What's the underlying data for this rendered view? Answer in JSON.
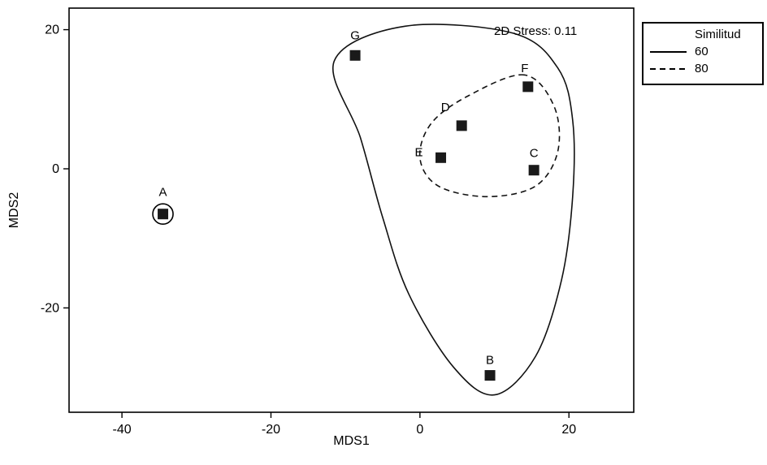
{
  "chart_data": {
    "type": "scatter",
    "title": "",
    "xlabel": "MDS1",
    "ylabel": "MDS2",
    "annotation": "2D Stress: 0.11",
    "xlim": [
      -47.1,
      28.7
    ],
    "ylim": [
      -35.0,
      23.1
    ],
    "xticks": [
      -40,
      -20,
      0,
      20
    ],
    "yticks": [
      -20,
      0,
      20
    ],
    "grid": false,
    "points": [
      {
        "label": "A",
        "x": -34.5,
        "y": -6.5,
        "circled": true,
        "label_offset": [
          0,
          -22
        ]
      },
      {
        "label": "G",
        "x": -8.7,
        "y": 16.3,
        "circled": false,
        "label_offset": [
          0,
          -20
        ]
      },
      {
        "label": "F",
        "x": 14.5,
        "y": 11.8,
        "circled": false,
        "label_offset": [
          -4,
          -18
        ]
      },
      {
        "label": "D",
        "x": 5.6,
        "y": 6.2,
        "circled": false,
        "label_offset": [
          -20,
          -18
        ]
      },
      {
        "label": "E",
        "x": 2.8,
        "y": 1.6,
        "circled": false,
        "label_offset": [
          -27,
          -2
        ]
      },
      {
        "label": "C",
        "x": 15.3,
        "y": -0.2,
        "circled": false,
        "label_offset": [
          0,
          -16
        ]
      },
      {
        "label": "B",
        "x": 9.4,
        "y": -29.7,
        "circled": false,
        "label_offset": [
          0,
          -14
        ]
      }
    ],
    "contours": [
      {
        "similarity": 60,
        "style": "solid",
        "points": [
          [
            -2,
            20.5
          ],
          [
            -11.5,
            15.5
          ],
          [
            -8,
            4.5
          ],
          [
            -5,
            -7
          ],
          [
            -1.5,
            -18
          ],
          [
            4.5,
            -28.5
          ],
          [
            10,
            -32.5
          ],
          [
            15.5,
            -27
          ],
          [
            19,
            -16
          ],
          [
            20.5,
            -4
          ],
          [
            20.5,
            7
          ],
          [
            18.5,
            14.5
          ],
          [
            12.5,
            19.5
          ]
        ]
      },
      {
        "similarity": 80,
        "style": "dashed",
        "points": [
          [
            14,
            13.5
          ],
          [
            6.5,
            10.5
          ],
          [
            1.5,
            6.5
          ],
          [
            0,
            1.5
          ],
          [
            2.5,
            -2.5
          ],
          [
            9,
            -4
          ],
          [
            15.5,
            -2.5
          ],
          [
            18.5,
            2.5
          ],
          [
            18,
            9
          ]
        ]
      }
    ],
    "legend": {
      "position": "top-right",
      "title": "Similitud",
      "entries": [
        {
          "label": "60",
          "line_style": "solid"
        },
        {
          "label": "80",
          "line_style": "dashed"
        }
      ]
    },
    "marker": {
      "shape": "square",
      "color": "#1a1a1a",
      "size": 13
    }
  },
  "colors": {
    "foreground": "#000000",
    "background": "#ffffff"
  }
}
